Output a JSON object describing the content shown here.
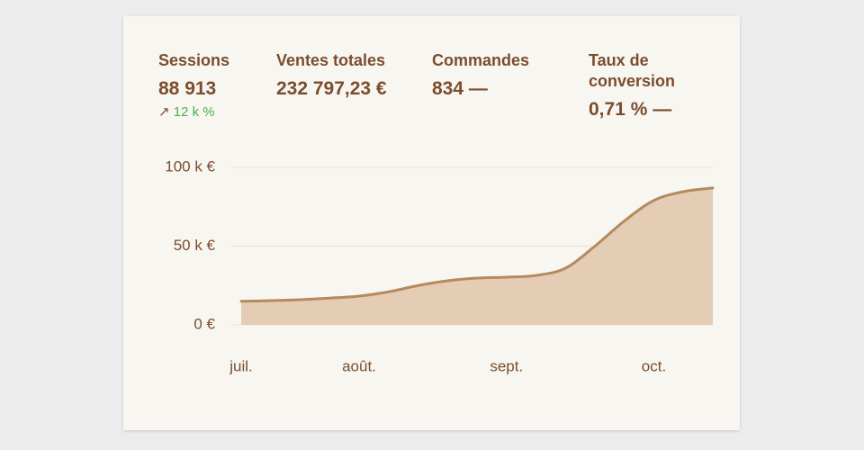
{
  "metrics": [
    {
      "label": "Sessions",
      "value": "88 913",
      "delta": "12 k %"
    },
    {
      "label": "Ventes totales",
      "value": "232 797,23 €"
    },
    {
      "label": "Commandes",
      "value": "834 —"
    },
    {
      "label": "Taux de conversion",
      "value": "0,71 % —"
    }
  ],
  "chart_data": {
    "type": "area",
    "categories": [
      "juil.",
      null,
      null,
      null,
      "août.",
      null,
      null,
      null,
      null,
      "sept.",
      null,
      null,
      null,
      null,
      "oct.",
      null,
      null
    ],
    "series": [
      {
        "color": "#b48a5e",
        "fill": "#e5ccb5",
        "values": [
          15000,
          15400,
          16000,
          17000,
          18300,
          21000,
          25000,
          28000,
          29700,
          30300,
          31400,
          36000,
          50000,
          66000,
          79000,
          84600,
          86900
        ]
      }
    ],
    "ylim": [
      0,
      100000
    ],
    "yticks": [
      {
        "value": 0,
        "label": "0 €"
      },
      {
        "value": 50000,
        "label": "50 k €"
      },
      {
        "value": 100000,
        "label": "100 k €"
      }
    ],
    "grid": true
  }
}
